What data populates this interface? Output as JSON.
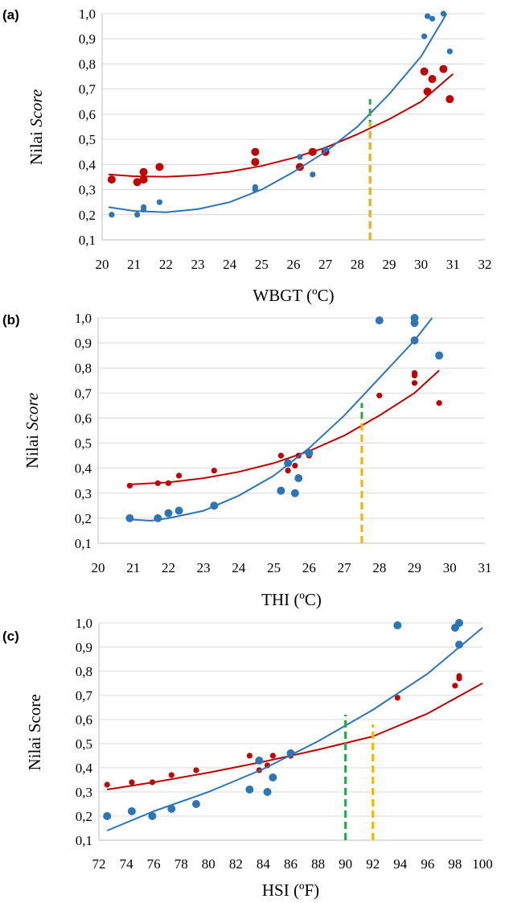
{
  "colors": {
    "red": "#c00000",
    "blue": "#2e75b6",
    "green": "#1faa4a",
    "orange": "#f5b400"
  },
  "chart_data": [
    {
      "type": "scatter",
      "label": "(a)",
      "xlabel": "WBGT (ºC)",
      "ylabel_main": "Nilai ",
      "ylabel_italic": "Score",
      "xlim": [
        20,
        32
      ],
      "ylim": [
        0.1,
        1.0
      ],
      "xticks": [
        "20",
        "21",
        "22",
        "23",
        "24",
        "25",
        "26",
        "27",
        "28",
        "29",
        "30",
        "31",
        "32"
      ],
      "yticks": [
        "0,1",
        "0,2",
        "0,3",
        "0,4",
        "0,5",
        "0,6",
        "0,7",
        "0,8",
        "0,9",
        "1,0"
      ],
      "series": [
        {
          "color": "red",
          "size": "large",
          "points": [
            [
              20.3,
              0.34
            ],
            [
              21.1,
              0.33
            ],
            [
              21.3,
              0.34
            ],
            [
              21.3,
              0.37
            ],
            [
              21.8,
              0.39
            ],
            [
              24.8,
              0.45
            ],
            [
              24.8,
              0.41
            ],
            [
              26.2,
              0.39
            ],
            [
              26.6,
              0.45
            ],
            [
              27,
              0.45
            ],
            [
              30.1,
              0.77
            ],
            [
              30.2,
              0.69
            ],
            [
              30.35,
              0.74
            ],
            [
              30.7,
              0.78
            ],
            [
              30.9,
              0.66
            ]
          ],
          "trend": [
            [
              20.2,
              0.36
            ],
            [
              21,
              0.353
            ],
            [
              22,
              0.351
            ],
            [
              23,
              0.357
            ],
            [
              24,
              0.371
            ],
            [
              25,
              0.394
            ],
            [
              26,
              0.426
            ],
            [
              27,
              0.467
            ],
            [
              28,
              0.52
            ],
            [
              29,
              0.58
            ],
            [
              30,
              0.65
            ],
            [
              31,
              0.76
            ]
          ]
        },
        {
          "color": "blue",
          "size": "small",
          "points": [
            [
              20.3,
              0.2
            ],
            [
              21.1,
              0.2
            ],
            [
              21.3,
              0.22
            ],
            [
              21.3,
              0.23
            ],
            [
              21.8,
              0.25
            ],
            [
              24.8,
              0.3
            ],
            [
              24.8,
              0.31
            ],
            [
              26.2,
              0.43
            ],
            [
              26.6,
              0.36
            ],
            [
              27,
              0.46
            ],
            [
              30.1,
              0.91
            ],
            [
              30.2,
              0.99
            ],
            [
              30.35,
              0.98
            ],
            [
              30.7,
              1.0
            ],
            [
              30.9,
              0.85
            ]
          ],
          "trend": [
            [
              20.2,
              0.23
            ],
            [
              21,
              0.215
            ],
            [
              22,
              0.21
            ],
            [
              23,
              0.222
            ],
            [
              24,
              0.25
            ],
            [
              25,
              0.3
            ],
            [
              26,
              0.37
            ],
            [
              27,
              0.45
            ],
            [
              28,
              0.55
            ],
            [
              29,
              0.68
            ],
            [
              30,
              0.83
            ],
            [
              30.8,
              1.0
            ]
          ]
        }
      ],
      "vlines": [
        {
          "x": 28.4,
          "from": 0.1,
          "to": 0.66,
          "color": "green"
        },
        {
          "x": 28.4,
          "from": 0.1,
          "to": 0.57,
          "color": "orange"
        }
      ]
    },
    {
      "type": "scatter",
      "label": "(b)",
      "xlabel": "THI (ºC)",
      "ylabel_main": "Nilai ",
      "ylabel_italic": "Score",
      "xlim": [
        20,
        31
      ],
      "ylim": [
        0.1,
        1.0
      ],
      "xticks": [
        "20",
        "21",
        "22",
        "23",
        "24",
        "25",
        "26",
        "27",
        "28",
        "29",
        "30",
        "31"
      ],
      "yticks": [
        "0,1",
        "0,2",
        "0,3",
        "0,4",
        "0,5",
        "0,6",
        "0,7",
        "0,8",
        "0,9",
        "1,0"
      ],
      "series": [
        {
          "color": "red",
          "size": "small",
          "points": [
            [
              20.9,
              0.33
            ],
            [
              21.7,
              0.34
            ],
            [
              22,
              0.34
            ],
            [
              22.3,
              0.37
            ],
            [
              23.3,
              0.39
            ],
            [
              25.2,
              0.45
            ],
            [
              25.4,
              0.39
            ],
            [
              25.6,
              0.41
            ],
            [
              25.7,
              0.45
            ],
            [
              26,
              0.45
            ],
            [
              28,
              0.69
            ],
            [
              29,
              0.74
            ],
            [
              29,
              0.77
            ],
            [
              29,
              0.78
            ],
            [
              29.7,
              0.66
            ]
          ],
          "trend": [
            [
              20.9,
              0.335
            ],
            [
              22,
              0.343
            ],
            [
              23,
              0.36
            ],
            [
              24,
              0.385
            ],
            [
              25,
              0.42
            ],
            [
              26,
              0.468
            ],
            [
              27,
              0.53
            ],
            [
              28,
              0.61
            ],
            [
              29,
              0.7
            ],
            [
              29.7,
              0.79
            ]
          ]
        },
        {
          "color": "blue",
          "size": "large",
          "points": [
            [
              20.9,
              0.2
            ],
            [
              21.7,
              0.2
            ],
            [
              22,
              0.22
            ],
            [
              22.3,
              0.23
            ],
            [
              23.3,
              0.25
            ],
            [
              25.2,
              0.31
            ],
            [
              25.4,
              0.42
            ],
            [
              25.6,
              0.3
            ],
            [
              25.7,
              0.36
            ],
            [
              26,
              0.46
            ],
            [
              28,
              0.99
            ],
            [
              29,
              0.98
            ],
            [
              29,
              1.0
            ],
            [
              29,
              0.91
            ],
            [
              29.7,
              0.85
            ]
          ],
          "trend": [
            [
              20.9,
              0.195
            ],
            [
              21.5,
              0.19
            ],
            [
              22,
              0.2
            ],
            [
              23,
              0.23
            ],
            [
              24,
              0.29
            ],
            [
              25,
              0.37
            ],
            [
              26,
              0.48
            ],
            [
              27,
              0.61
            ],
            [
              28,
              0.76
            ],
            [
              29,
              0.91
            ],
            [
              29.5,
              1.0
            ]
          ]
        }
      ],
      "vlines": [
        {
          "x": 27.5,
          "from": 0.1,
          "to": 0.66,
          "color": "green"
        },
        {
          "x": 27.5,
          "from": 0.1,
          "to": 0.6,
          "color": "orange"
        }
      ]
    },
    {
      "type": "scatter",
      "label": "(c)",
      "xlabel": "HSI (ºF)",
      "ylabel_main": "Nilai Score",
      "ylabel_italic": "",
      "xlim": [
        72,
        100
      ],
      "ylim": [
        0.1,
        1.0
      ],
      "xticks": [
        "72",
        "74",
        "76",
        "78",
        "80",
        "82",
        "84",
        "86",
        "88",
        "90",
        "92",
        "94",
        "96",
        "98",
        "100"
      ],
      "yticks": [
        "0,1",
        "0,2",
        "0,3",
        "0,4",
        "0,5",
        "0,6",
        "0,7",
        "0,8",
        "0,9",
        "1,0"
      ],
      "series": [
        {
          "color": "red",
          "size": "small",
          "points": [
            [
              72.6,
              0.33
            ],
            [
              74.4,
              0.34
            ],
            [
              75.9,
              0.34
            ],
            [
              77.3,
              0.37
            ],
            [
              79.1,
              0.39
            ],
            [
              83,
              0.45
            ],
            [
              83.7,
              0.39
            ],
            [
              84.3,
              0.41
            ],
            [
              84.7,
              0.45
            ],
            [
              86,
              0.45
            ],
            [
              93.8,
              0.69
            ],
            [
              98,
              0.74
            ],
            [
              98.3,
              0.77
            ],
            [
              98.3,
              0.78
            ]
          ],
          "trend": [
            [
              72.6,
              0.31
            ],
            [
              76,
              0.34
            ],
            [
              80,
              0.38
            ],
            [
              84,
              0.425
            ],
            [
              88,
              0.475
            ],
            [
              92,
              0.53
            ],
            [
              96,
              0.625
            ],
            [
              100,
              0.75
            ]
          ]
        },
        {
          "color": "blue",
          "size": "large",
          "points": [
            [
              72.6,
              0.2
            ],
            [
              74.4,
              0.22
            ],
            [
              75.9,
              0.2
            ],
            [
              77.3,
              0.23
            ],
            [
              79.1,
              0.25
            ],
            [
              83,
              0.31
            ],
            [
              83.7,
              0.43
            ],
            [
              84.3,
              0.3
            ],
            [
              84.7,
              0.36
            ],
            [
              86,
              0.46
            ],
            [
              93.8,
              0.99
            ],
            [
              98,
              0.98
            ],
            [
              98.3,
              1.0
            ],
            [
              98.3,
              0.91
            ]
          ],
          "trend": [
            [
              72.6,
              0.14
            ],
            [
              76,
              0.22
            ],
            [
              80,
              0.3
            ],
            [
              84,
              0.395
            ],
            [
              88,
              0.51
            ],
            [
              92,
              0.64
            ],
            [
              96,
              0.79
            ],
            [
              100,
              0.98
            ]
          ]
        }
      ],
      "vlines": [
        {
          "x": 90,
          "from": 0.1,
          "to": 0.62,
          "color": "green"
        },
        {
          "x": 92,
          "from": 0.1,
          "to": 0.58,
          "color": "orange"
        }
      ]
    }
  ]
}
